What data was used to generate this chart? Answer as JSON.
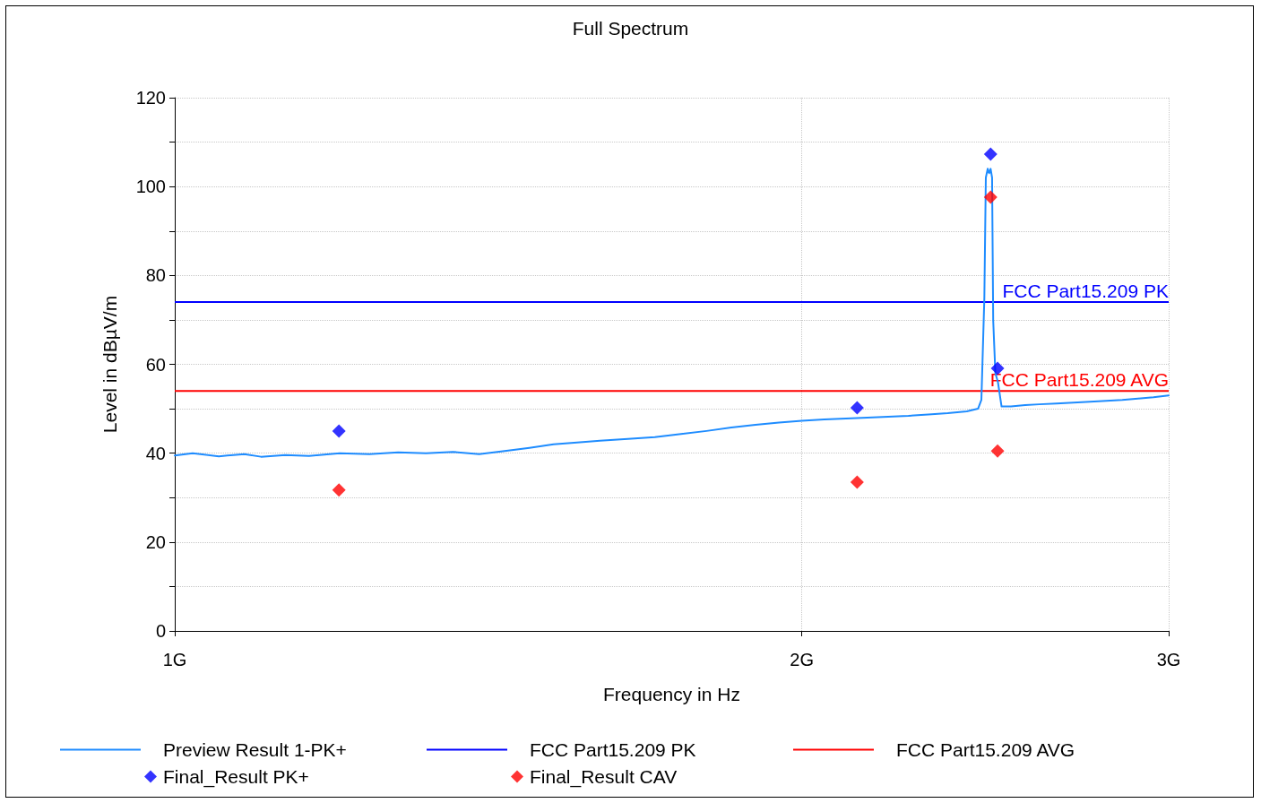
{
  "chart_data": {
    "type": "line",
    "title": "Full Spectrum",
    "xlabel": "Frequency in Hz",
    "ylabel": "Level in dBµV/m",
    "log": "x",
    "xlim": [
      1,
      3
    ],
    "xticks": [
      {
        "value": 1,
        "label": "1G"
      },
      {
        "value": 2,
        "label": "2G"
      },
      {
        "value": 3,
        "label": "3G"
      }
    ],
    "ylim": [
      0,
      120
    ],
    "yticks": [
      0,
      {
        "value": 10,
        "label": null
      },
      20,
      {
        "value": 30,
        "label": null
      },
      40,
      {
        "value": 50,
        "label": null
      },
      60,
      {
        "value": 70,
        "label": null
      },
      80,
      {
        "value": 90,
        "label": null
      },
      100,
      {
        "value": 110,
        "label": null
      },
      120
    ],
    "grid": true,
    "legend": "bottom",
    "ref_lines": [
      {
        "axis": "y",
        "value": 74,
        "label": "FCC Part15.209 PK",
        "color": "#0000ff"
      },
      {
        "axis": "y",
        "value": 54,
        "label": "FCC Part15.209 AVG",
        "color": "#ff0000"
      }
    ],
    "series": [
      {
        "name": "Preview Result 1-PK+",
        "color": "#1e8cff",
        "marker": "none",
        "x": [
          1.0,
          1.02,
          1.05,
          1.08,
          1.1,
          1.13,
          1.16,
          1.2,
          1.24,
          1.28,
          1.32,
          1.36,
          1.4,
          1.44,
          1.48,
          1.52,
          1.56,
          1.6,
          1.65,
          1.7,
          1.75,
          1.8,
          1.85,
          1.9,
          1.95,
          2.0,
          2.05,
          2.1,
          2.15,
          2.2,
          2.25,
          2.3,
          2.35,
          2.4,
          2.43,
          2.439,
          2.447,
          2.451,
          2.456,
          2.46,
          2.464,
          2.468,
          2.471,
          2.477,
          2.484,
          2.494,
          2.52,
          2.56,
          2.6,
          2.65,
          2.7,
          2.75,
          2.8,
          2.85,
          2.9,
          2.95,
          3.0
        ],
        "values": [
          39.5,
          40,
          39.3,
          39.8,
          39.2,
          39.6,
          39.4,
          40,
          39.8,
          40.2,
          40,
          40.3,
          39.8,
          40.5,
          41.2,
          42,
          42.4,
          42.8,
          43.2,
          43.6,
          44.3,
          45,
          45.8,
          46.4,
          46.9,
          47.3,
          47.6,
          47.8,
          48,
          48.2,
          48.4,
          48.7,
          49,
          49.4,
          50,
          52,
          75,
          102,
          104,
          103,
          104,
          102,
          70,
          58,
          56,
          50.5,
          50.5,
          50.8,
          51,
          51.2,
          51.4,
          51.6,
          51.8,
          52,
          52.3,
          52.6,
          53
        ]
      },
      {
        "name": "Final_Result PK+",
        "type": "scatter",
        "color": "#0000ff",
        "marker": "diamond",
        "x": [
          1.199,
          2.126,
          2.464,
          2.483
        ],
        "values": [
          45.0,
          50.2,
          107.3,
          59.1
        ]
      },
      {
        "name": "Final_Result CAV",
        "type": "scatter",
        "color": "#ff0000",
        "marker": "diamond",
        "x": [
          1.199,
          2.126,
          2.464,
          2.483
        ],
        "values": [
          31.7,
          33.5,
          97.6,
          40.5
        ]
      }
    ]
  }
}
